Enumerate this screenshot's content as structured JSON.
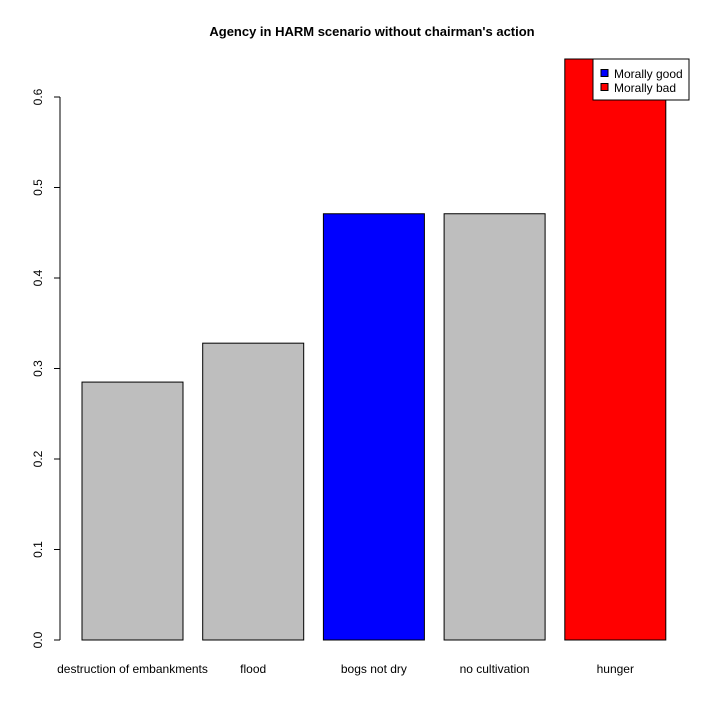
{
  "chart_data": {
    "type": "bar",
    "title": "Agency in HARM scenario without chairman's action",
    "xlabel": "",
    "ylabel": "",
    "categories": [
      "destruction of embankments",
      "flood",
      "bogs not dry",
      "no cultivation",
      "hunger"
    ],
    "values": [
      0.285,
      0.328,
      0.471,
      0.471,
      0.642
    ],
    "bar_colors": [
      "#bebebe",
      "#bebebe",
      "#0000ff",
      "#bebebe",
      "#ff0000"
    ],
    "ylim": [
      0,
      0.642
    ],
    "yticks": [
      0.0,
      0.1,
      0.2,
      0.3,
      0.4,
      0.5,
      0.6
    ],
    "ytick_labels": [
      "0.0",
      "0.1",
      "0.2",
      "0.3",
      "0.4",
      "0.5",
      "0.6"
    ],
    "grid": false,
    "legend": {
      "placement": "top-right",
      "entries": [
        {
          "label": "Morally good",
          "color": "#0000ff"
        },
        {
          "label": "Morally bad",
          "color": "#ff0000"
        }
      ]
    }
  }
}
